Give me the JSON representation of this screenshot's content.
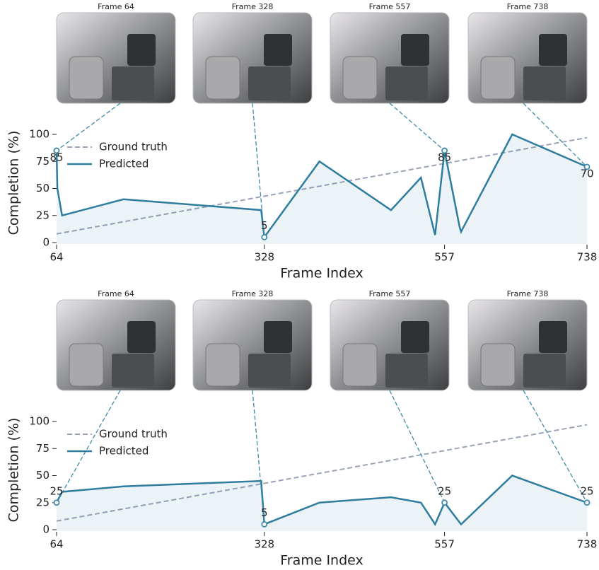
{
  "chart_data": [
    {
      "type": "line",
      "xlabel": "Frame Index",
      "ylabel": "Completion (%)",
      "xlim": [
        64,
        738
      ],
      "xticks": [
        64,
        328,
        557,
        738
      ],
      "ylim": [
        0,
        100
      ],
      "yticks": [
        0,
        25,
        50,
        75,
        100
      ],
      "thumbnails": [
        "Frame 64",
        "Frame 328",
        "Frame 557",
        "Frame 738"
      ],
      "legend": "upper left",
      "series": [
        {
          "name": "Ground truth",
          "color": "#9aa3b8",
          "x": [
            64,
            738
          ],
          "values": [
            8,
            97
          ]
        },
        {
          "name": "Predicted",
          "color": "#2e7d9f",
          "x": [
            64,
            65,
            71,
            149,
            324,
            328,
            398,
            489,
            527,
            545,
            557,
            576,
            578,
            643,
            738
          ],
          "values": [
            85,
            50,
            25,
            40,
            30,
            5,
            75,
            30,
            60,
            7,
            85,
            15,
            10,
            100,
            70
          ]
        }
      ],
      "annotations": {
        "x": [
          64,
          328,
          557,
          738
        ],
        "values": [
          85,
          5,
          85,
          70
        ]
      }
    },
    {
      "type": "line",
      "xlabel": "Frame Index",
      "ylabel": "Completion (%)",
      "xlim": [
        64,
        738
      ],
      "xticks": [
        64,
        328,
        557,
        738
      ],
      "ylim": [
        0,
        100
      ],
      "yticks": [
        0,
        25,
        50,
        75,
        100
      ],
      "thumbnails": [
        "Frame 64",
        "Frame 328",
        "Frame 557",
        "Frame 738"
      ],
      "legend": "upper left",
      "series": [
        {
          "name": "Ground truth",
          "color": "#9aa3b8",
          "x": [
            64,
            738
          ],
          "values": [
            8,
            97
          ]
        },
        {
          "name": "Predicted",
          "color": "#2e7d9f",
          "x": [
            64,
            71,
            149,
            324,
            328,
            398,
            489,
            527,
            545,
            557,
            578,
            643,
            738
          ],
          "values": [
            25,
            35,
            40,
            45,
            5,
            25,
            30,
            25,
            5,
            25,
            5,
            50,
            25
          ]
        }
      ],
      "annotations": {
        "x": [
          64,
          328,
          557,
          738
        ],
        "values": [
          25,
          5,
          25,
          25
        ]
      }
    }
  ]
}
